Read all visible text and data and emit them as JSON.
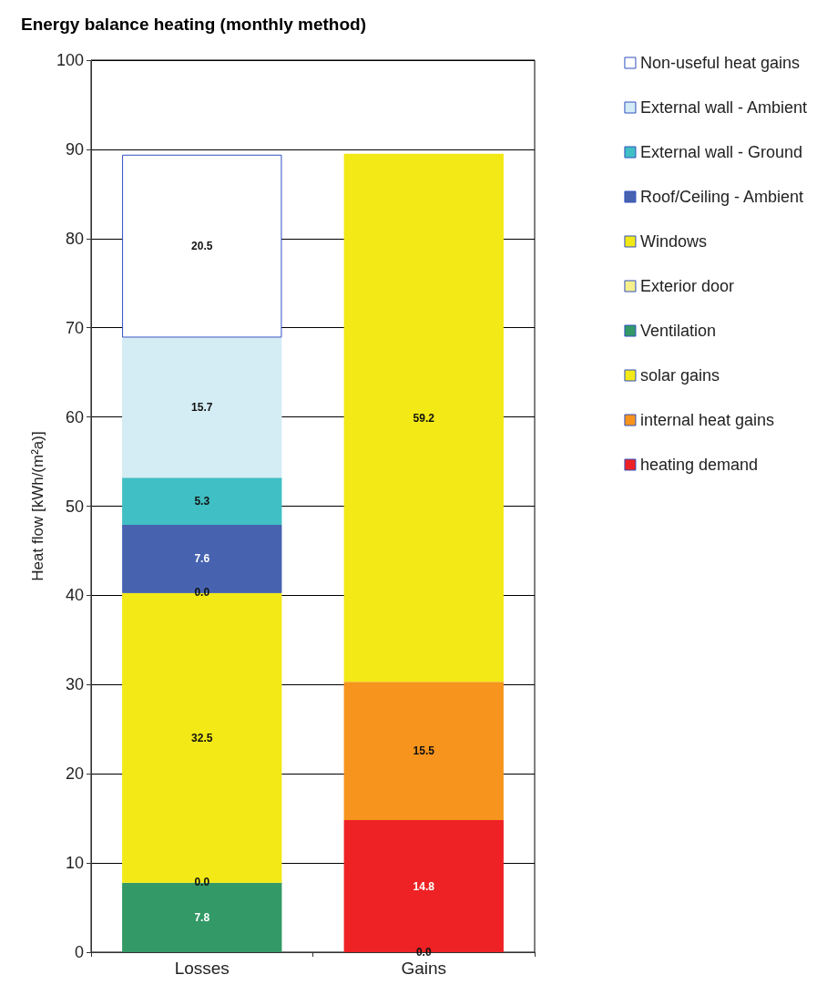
{
  "chart_data": {
    "type": "bar",
    "title": "Energy balance heating (monthly method)",
    "ylabel": "Heat flow [kWh/(m²a)]",
    "categories": [
      "Losses",
      "Gains"
    ],
    "stacked": true,
    "ylim": [
      0,
      100
    ],
    "yticks": [
      0,
      10,
      20,
      30,
      40,
      50,
      60,
      70,
      80,
      90,
      100
    ],
    "grid": "y",
    "legend": "right",
    "series": [
      {
        "values": [
          null,
          0.0
        ],
        "value_labels": [
          null,
          "0.0"
        ]
      },
      {
        "name": "heating demand",
        "color": "#ee2224",
        "values": [
          null,
          14.8
        ],
        "value_labels": [
          null,
          "14.8"
        ]
      },
      {
        "name": "internal heat gains",
        "color": "#f7941d",
        "values": [
          null,
          15.5
        ],
        "value_labels": [
          null,
          "15.5"
        ]
      },
      {
        "name": "solar gains",
        "color": "#f2e916",
        "values": [
          null,
          59.2
        ],
        "value_labels": [
          null,
          "59.2"
        ]
      },
      {
        "name": "Ventilation",
        "color": "#339966",
        "values": [
          7.8,
          null
        ],
        "value_labels": [
          "7.8",
          null
        ]
      },
      {
        "name": "Exterior door",
        "color": "#f5f08c",
        "values": [
          0.0,
          null
        ],
        "value_labels": [
          "0.0",
          null
        ]
      },
      {
        "name": "Windows",
        "color": "#f2e916",
        "values": [
          32.5,
          null
        ],
        "value_labels": [
          "32.5",
          null
        ]
      },
      {
        "values": [
          0.0,
          null
        ],
        "value_labels": [
          "0.0",
          null
        ]
      },
      {
        "name": "Roof/Ceiling - Ambient",
        "color": "#4763b0",
        "values": [
          7.6,
          null
        ],
        "value_labels": [
          "7.6",
          null
        ]
      },
      {
        "name": "External wall - Ground",
        "color": "#40bfc4",
        "values": [
          5.3,
          null
        ],
        "value_labels": [
          "5.3",
          null
        ]
      },
      {
        "name": "External wall - Ambient",
        "color": "#d4ecf4",
        "values": [
          15.7,
          null
        ],
        "value_labels": [
          "15.7",
          null
        ]
      },
      {
        "name": "Non-useful heat gains",
        "color": "#ffffff",
        "values": [
          20.5,
          null
        ],
        "value_labels": [
          "20.5",
          null
        ]
      }
    ]
  }
}
